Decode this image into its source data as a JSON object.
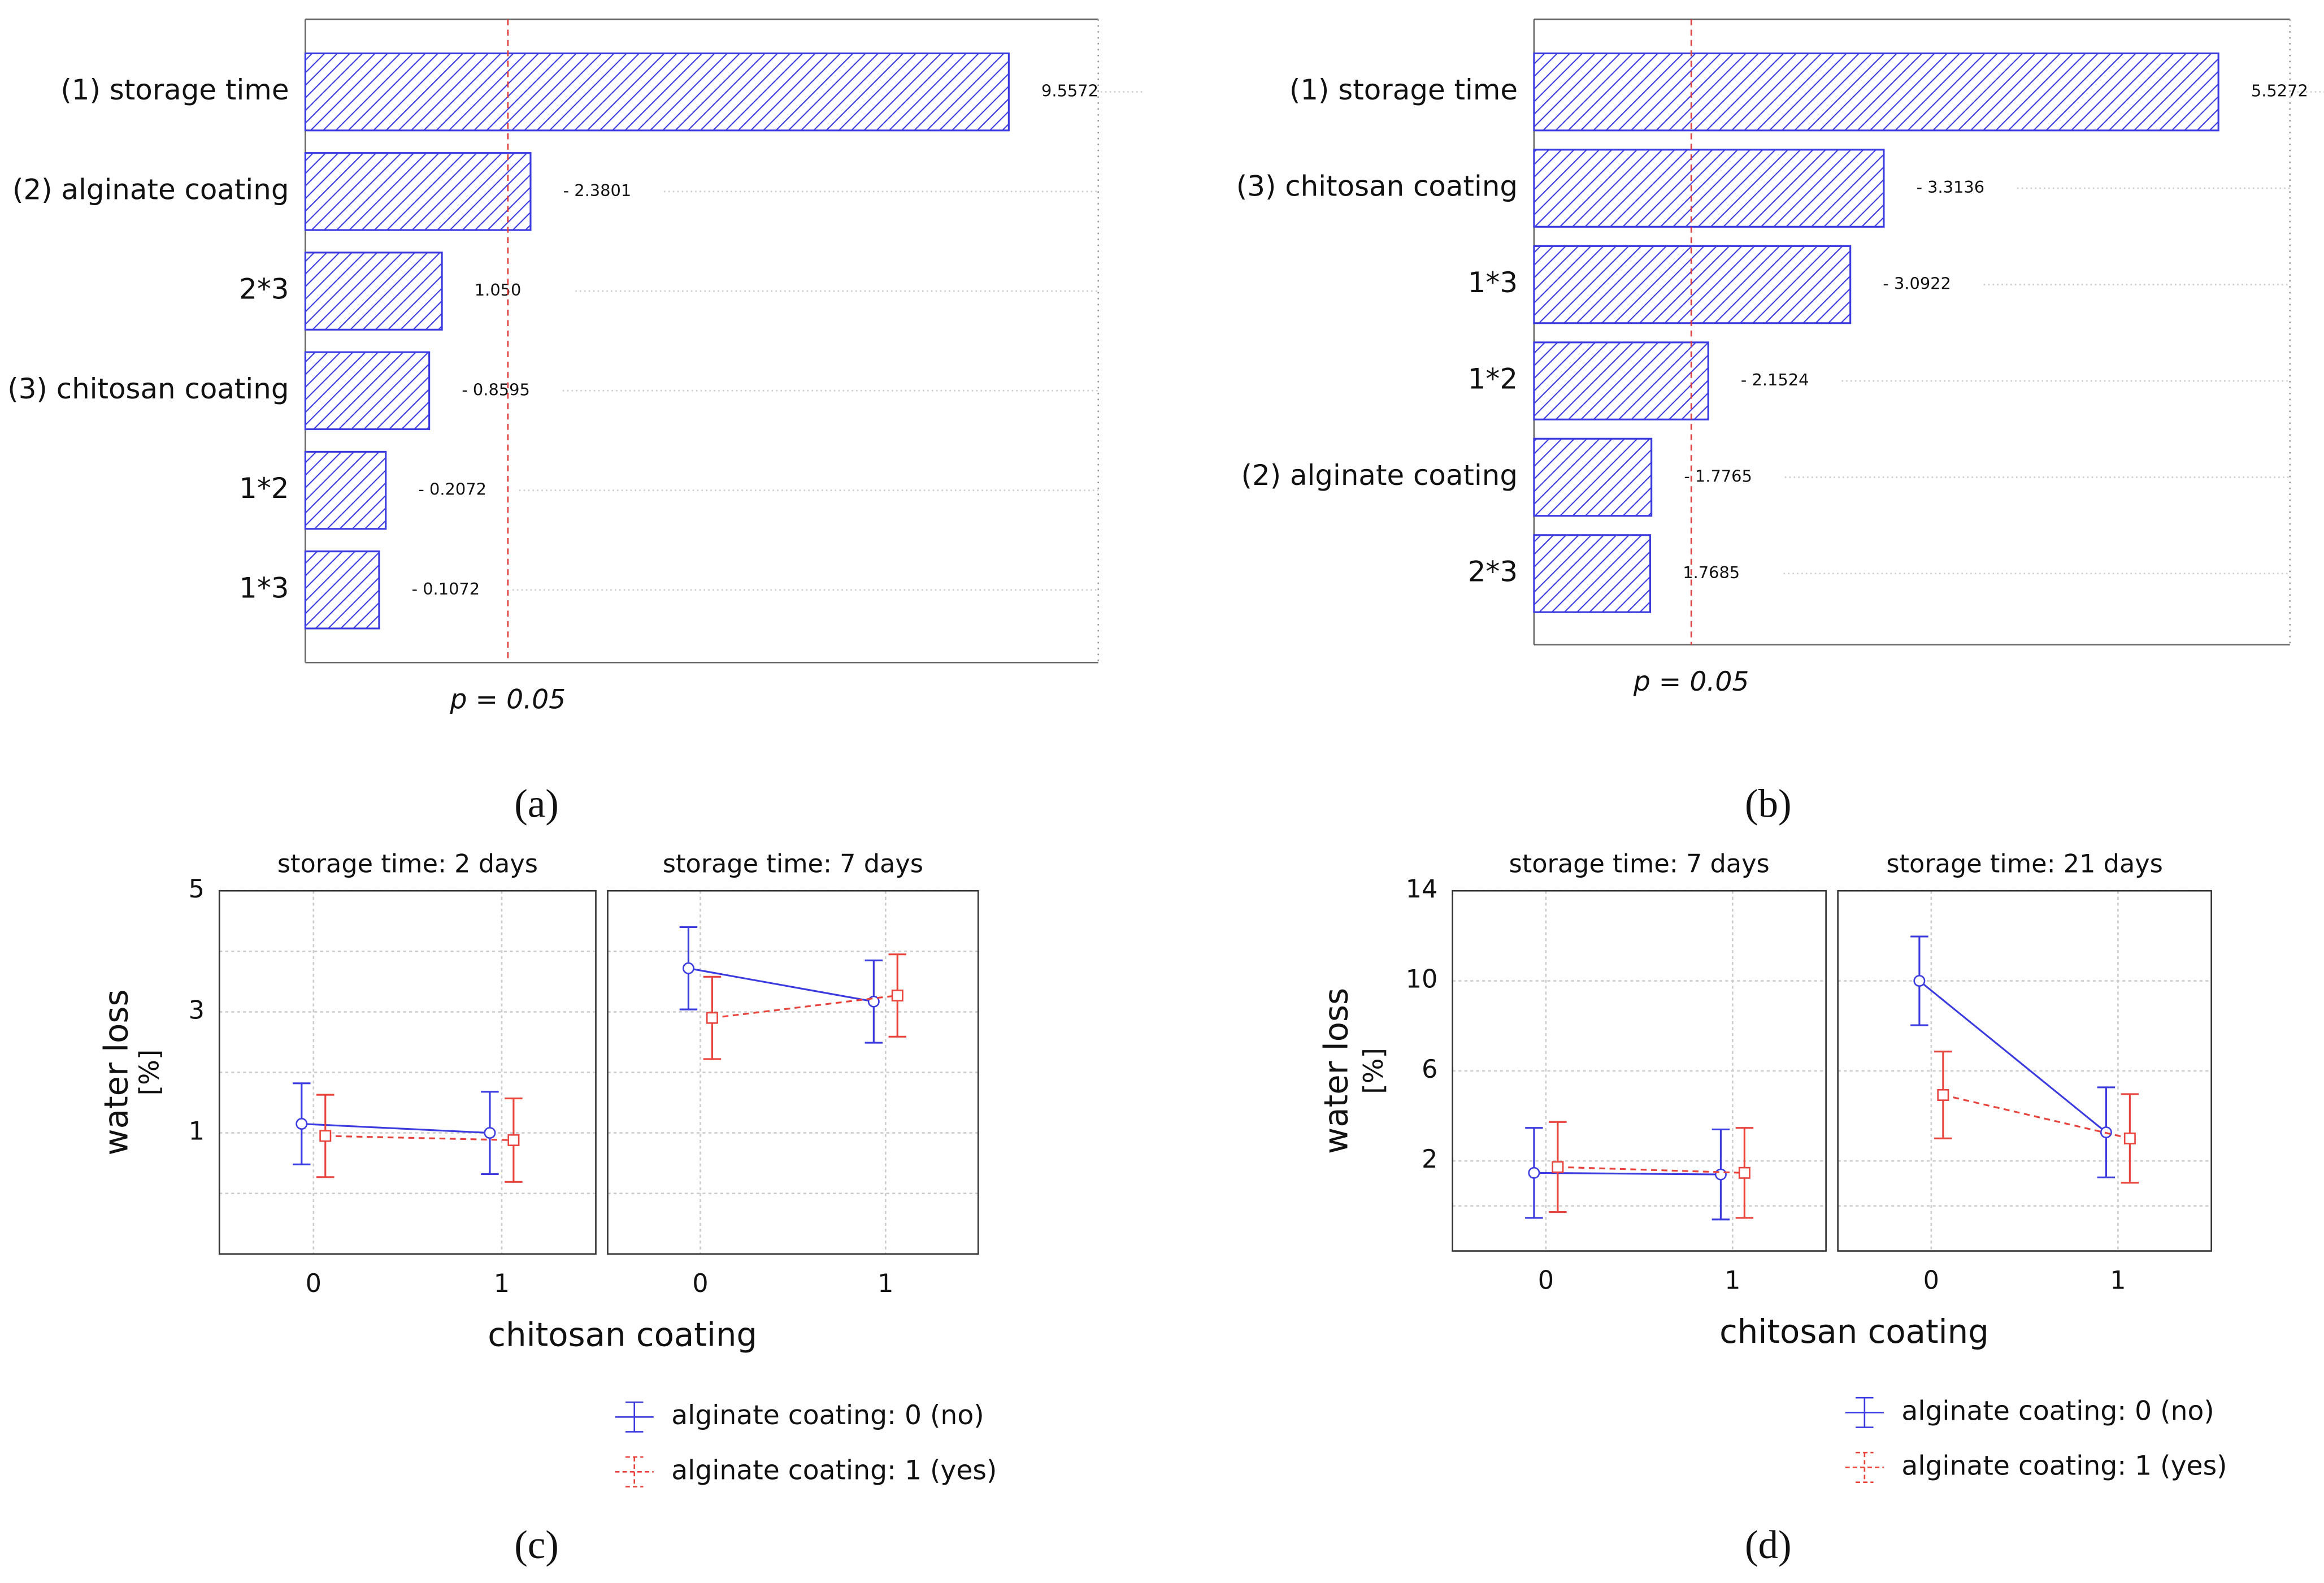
{
  "chart_data": [
    {
      "type": "pareto",
      "categories": [
        "(1) storage time",
        "(2)  alginate coating",
        "2*3",
        "(3)  chitosan coating",
        "1*2",
        "1*3"
      ],
      "values": [
        9.5572,
        -2.3801,
        1.05,
        -0.8595,
        -0.2072,
        -0.1072
      ],
      "value_labels": [
        "9.5572",
        "- 2.3801",
        "1.050",
        "- 0.8595",
        "- 0.2072",
        "- 0.1072"
      ],
      "xlim": [
        -1,
        10.9
      ],
      "color": "#3b3be0",
      "reference_line": {
        "value": 2.04,
        "label": "p = 0.05",
        "color": "#e03a3a"
      },
      "caption": "(a)"
    },
    {
      "type": "pareto",
      "categories": [
        "(1) storage time",
        "(3)  chitosan coating",
        "1*3",
        "1*2",
        "(2)  alginate coating",
        "2*3"
      ],
      "values": [
        5.5272,
        -3.3136,
        -3.0922,
        -2.1524,
        -1.7765,
        1.7685
      ],
      "value_labels": [
        "5.5272",
        "- 3.3136",
        "- 3.0922",
        "- 2.1524",
        "- 1.7765",
        "1.7685"
      ],
      "xlim": [
        1,
        6
      ],
      "color": "#3b3be0",
      "reference_line": {
        "value": 2.04,
        "label": "p = 0.05",
        "color": "#e03a3a"
      },
      "caption": "(b)"
    },
    {
      "type": "interaction",
      "categories": [
        0,
        1
      ],
      "series": [
        {
          "name": "alginate coating: 0 (no)",
          "color": "#3b3be0",
          "marker": "circle",
          "dashed": false
        },
        {
          "name": "alginate coating: 1 (yes)",
          "color": "#e8433c",
          "marker": "square",
          "dashed": true
        }
      ],
      "panels": [
        {
          "title": "storage time: 2 days",
          "series": [
            {
              "values": [
                1.15,
                1.0
              ],
              "errors": [
                0.67,
                0.68
              ]
            },
            {
              "values": [
                0.95,
                0.88
              ],
              "errors": [
                0.68,
                0.69
              ]
            }
          ]
        },
        {
          "title": "storage time: 7 days",
          "series": [
            {
              "values": [
                3.72,
                3.17
              ],
              "errors": [
                0.68,
                0.68
              ]
            },
            {
              "values": [
                2.9,
                3.27
              ],
              "errors": [
                0.68,
                0.68
              ]
            }
          ]
        }
      ],
      "ylim": [
        -1,
        5
      ],
      "yticks": [
        1,
        3,
        5
      ],
      "minor_grid": [
        0,
        2,
        4
      ],
      "xlabel": "chitosan coating",
      "ylabel": [
        "water loss",
        "[%]"
      ],
      "caption": "(c)"
    },
    {
      "type": "interaction",
      "categories": [
        0,
        1
      ],
      "series": [
        {
          "name": "alginate coating: 0 (no)",
          "color": "#3b3be0",
          "marker": "circle",
          "dashed": false
        },
        {
          "name": "alginate coating: 1 (yes)",
          "color": "#e8433c",
          "marker": "square",
          "dashed": true
        }
      ],
      "panels": [
        {
          "title": "storage time: 7 days",
          "series": [
            {
              "values": [
                1.47,
                1.4
              ],
              "errors": [
                2.0,
                2.0
              ]
            },
            {
              "values": [
                1.73,
                1.47
              ],
              "errors": [
                2.0,
                2.0
              ]
            }
          ]
        },
        {
          "title": "storage time: 21 days",
          "series": [
            {
              "values": [
                10.0,
                3.27
              ],
              "errors": [
                1.97,
                2.0
              ]
            },
            {
              "values": [
                4.93,
                3.0
              ],
              "errors": [
                1.93,
                1.97
              ]
            }
          ]
        }
      ],
      "ylim": [
        -2,
        14
      ],
      "yticks": [
        2,
        6,
        10,
        14
      ],
      "minor_grid": [
        0
      ],
      "xlabel": "chitosan coating",
      "ylabel": [
        "water loss",
        "[%]"
      ],
      "caption": "(d)"
    }
  ]
}
